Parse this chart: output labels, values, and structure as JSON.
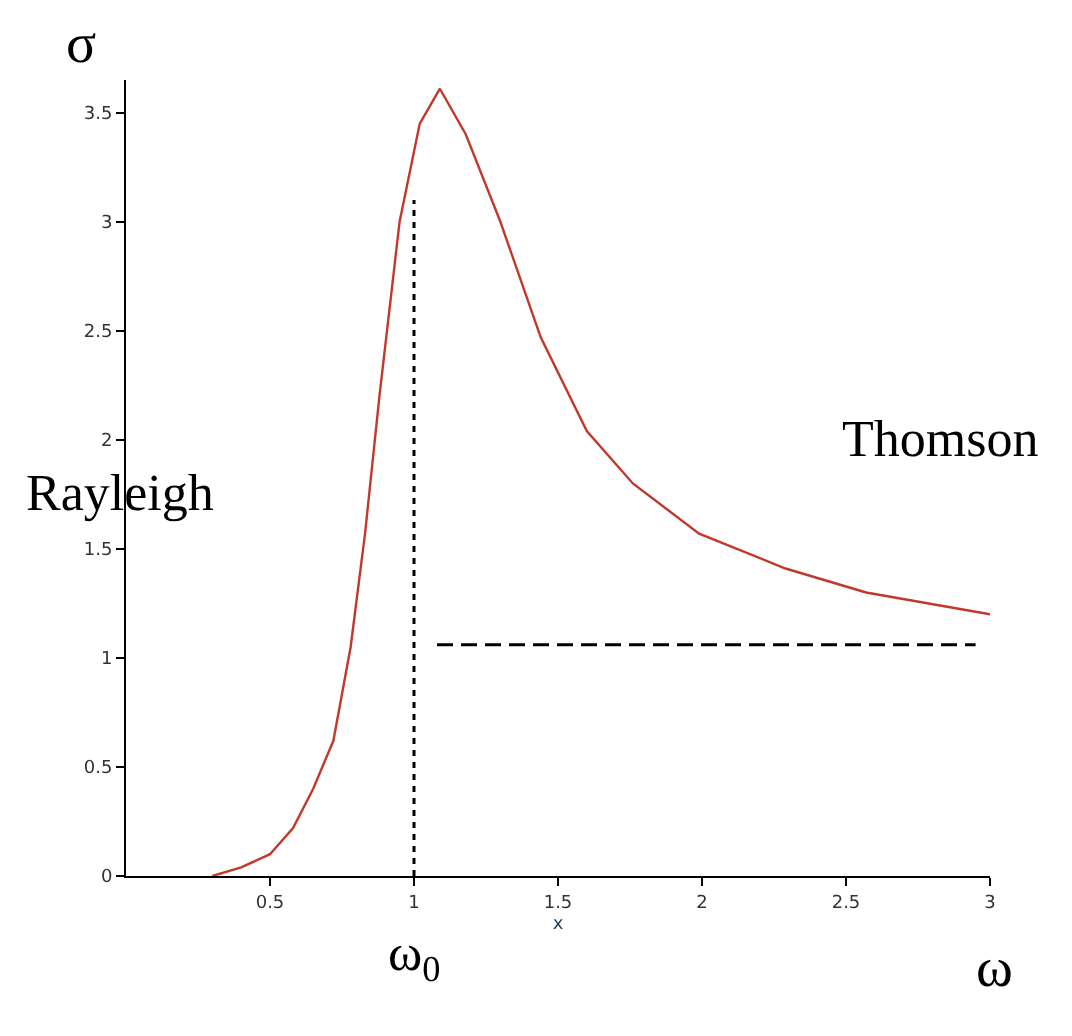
{
  "chart_data": {
    "type": "line",
    "xlabel": "x",
    "ylabel": "σ",
    "xlim": [
      0,
      3
    ],
    "ylim": [
      0,
      3.65
    ],
    "xticks": [
      0.5,
      1,
      1.5,
      2,
      2.5,
      3
    ],
    "yticks": [
      0,
      0.5,
      1,
      1.5,
      2,
      2.5,
      3,
      3.5
    ],
    "series": [
      {
        "color": "#c0392b",
        "line_style": "solid",
        "x": [
          0.3,
          0.4,
          0.5,
          0.58,
          0.65,
          0.72,
          0.78,
          0.83,
          0.88,
          0.95,
          1.02,
          1.09,
          1.18,
          1.3,
          1.44,
          1.6,
          1.76,
          1.99,
          2.29,
          2.57,
          3.0
        ],
        "values": [
          0,
          0.04,
          0.1,
          0.22,
          0.4,
          0.62,
          1.05,
          1.57,
          2.2,
          3.0,
          3.45,
          3.61,
          3.4,
          3.0,
          2.47,
          2.04,
          1.8,
          1.57,
          1.41,
          1.3,
          1.2
        ]
      },
      {
        "color": "#000000",
        "line_style": "dotted",
        "x": [
          1,
          1
        ],
        "values": [
          0,
          3.1
        ]
      },
      {
        "color": "#000000",
        "line_style": "dashed",
        "x": [
          1.08,
          2.95
        ],
        "values": [
          1.06,
          1.06
        ]
      }
    ],
    "annotations": [
      "Rayleigh",
      "Thomson",
      "ω",
      {
        "text": "ω$_{0}$",
        "x": 1
      }
    ]
  }
}
